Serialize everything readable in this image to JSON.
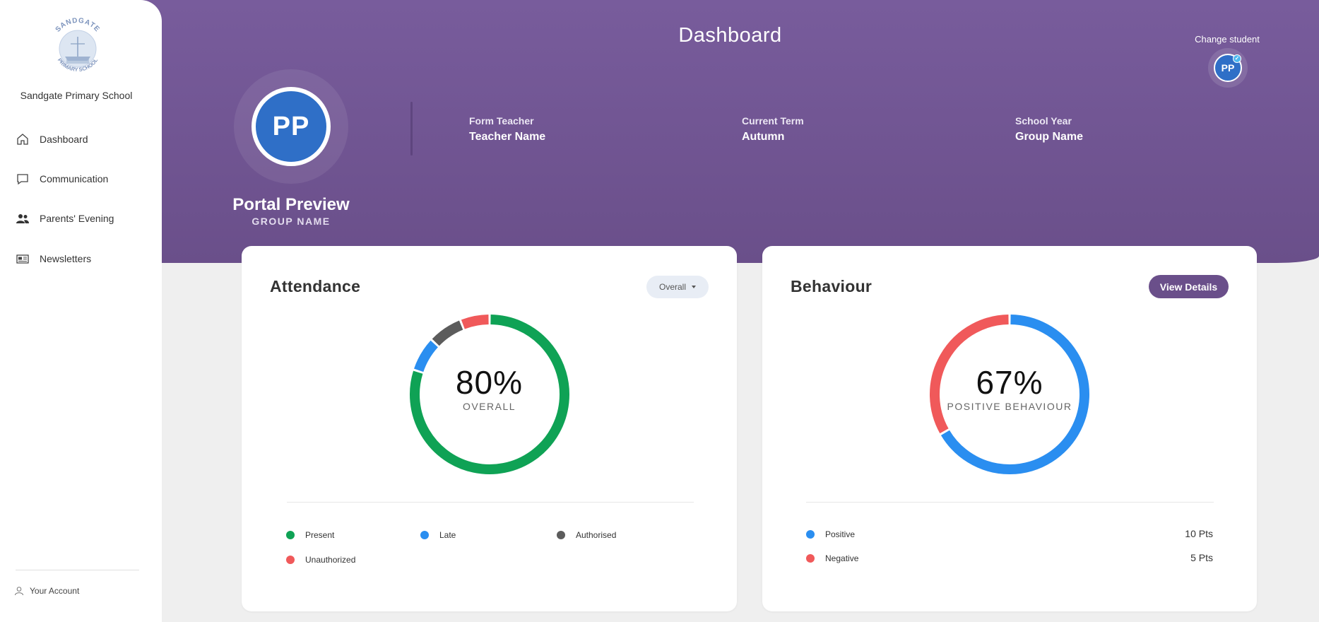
{
  "header": {
    "title": "Dashboard",
    "change_student_label": "Change student",
    "mini_avatar_initials": "PP"
  },
  "student": {
    "initials": "PP",
    "name": "Portal Preview",
    "group": "GROUP NAME"
  },
  "info": [
    {
      "label": "Form Teacher",
      "value": "Teacher Name"
    },
    {
      "label": "Current Term",
      "value": "Autumn"
    },
    {
      "label": "School Year",
      "value": "Group Name"
    }
  ],
  "sidebar": {
    "logo_text_top": "SANDGATE",
    "logo_text_bottom": "PRIMARY SCHOOL",
    "school_name": "Sandgate Primary School",
    "items": [
      {
        "label": "Dashboard",
        "icon": "home-icon"
      },
      {
        "label": "Communication",
        "icon": "chat-icon"
      },
      {
        "label": "Parents' Evening",
        "icon": "people-icon"
      },
      {
        "label": "Newsletters",
        "icon": "newspaper-icon"
      }
    ],
    "account_label": "Your Account"
  },
  "colors": {
    "purple": "#6a4f8a",
    "green": "#0fa255",
    "blue": "#2a8ef0",
    "grey": "#5c5c5c",
    "red": "#f0595a"
  },
  "attendance": {
    "title": "Attendance",
    "dropdown_value": "Overall",
    "percent_text": "80%",
    "center_label": "OVERALL",
    "legend": [
      {
        "label": "Present",
        "color": "#0fa255"
      },
      {
        "label": "Late",
        "color": "#2a8ef0"
      },
      {
        "label": "Authorised",
        "color": "#5c5c5c"
      },
      {
        "label": "Unauthorized",
        "color": "#f0595a"
      }
    ]
  },
  "behaviour": {
    "title": "Behaviour",
    "button_label": "View Details",
    "percent_text": "67%",
    "center_label": "POSITIVE BEHAVIOUR",
    "legend": [
      {
        "label": "Positive",
        "color": "#2a8ef0",
        "points": "10 Pts"
      },
      {
        "label": "Negative",
        "color": "#f0595a",
        "points": "5 Pts"
      }
    ]
  },
  "chart_data": [
    {
      "type": "pie",
      "title": "Attendance",
      "categories": [
        "Present",
        "Late",
        "Authorised",
        "Unauthorized"
      ],
      "values": [
        80,
        7,
        7,
        6
      ],
      "center_text": "80%"
    },
    {
      "type": "pie",
      "title": "Behaviour",
      "categories": [
        "Positive",
        "Negative"
      ],
      "values": [
        10,
        5
      ],
      "center_text": "67%"
    }
  ]
}
